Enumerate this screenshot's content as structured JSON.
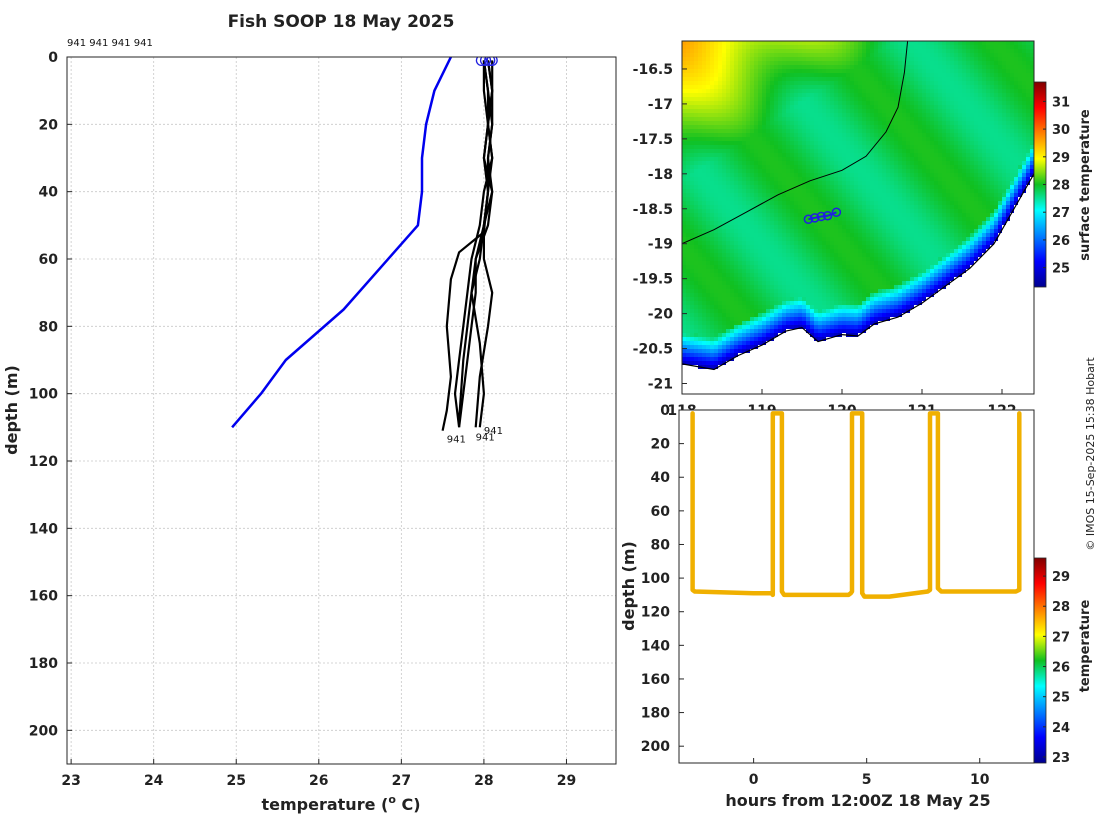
{
  "title": "Fish SOOP 18 May 2025",
  "credit": "© IMOS 15-Sep-2025 15:38 Hobart",
  "colors": {
    "climatology": "#0000ee",
    "profile": "#000000",
    "marker": "#2020e0",
    "track": "#f0b000",
    "coast": "#000000"
  },
  "chart_data": [
    {
      "id": "profile",
      "type": "line",
      "title": "Fish SOOP 18 May 2025",
      "xlabel": "temperature (o C)",
      "xlabel_base": "temperature (",
      "xlabel_sup": "o",
      "xlabel_tail": " C)",
      "ylabel": "depth (m)",
      "xlim": [
        22.95,
        29.6
      ],
      "ylim": [
        0,
        210
      ],
      "y_reversed": true,
      "xticks": [
        23,
        24,
        25,
        26,
        27,
        28,
        29
      ],
      "yticks": [
        0,
        20,
        40,
        60,
        80,
        100,
        120,
        140,
        160,
        180,
        200
      ],
      "grid": true,
      "top_annotation": "941 941 941 941",
      "profile_labels": [
        {
          "text": "941",
          "x": 27.55,
          "y": 111.5
        },
        {
          "text": "941",
          "x": 27.9,
          "y": 111
        },
        {
          "text": "941",
          "x": 28.0,
          "y": 109
        }
      ],
      "series": [
        {
          "name": "climatology",
          "color": "#0000ee",
          "temperature": [
            27.6,
            27.4,
            27.3,
            27.25,
            27.25,
            27.2,
            26.3,
            25.6,
            25.3,
            24.95
          ],
          "depth": [
            0,
            10,
            20,
            30,
            40,
            50,
            75,
            90,
            100,
            110
          ]
        },
        {
          "name": "profile-1",
          "color": "#000000",
          "temperature": [
            28.0,
            28.05,
            28.1,
            28.05,
            28.1,
            28.05,
            27.9,
            27.9,
            27.85,
            27.8,
            27.7
          ],
          "depth": [
            1,
            10,
            20,
            30,
            40,
            50,
            60,
            70,
            80,
            90,
            110
          ]
        },
        {
          "name": "profile-2",
          "color": "#000000",
          "temperature": [
            28.1,
            28.1,
            28.05,
            28.1,
            28.0,
            27.95,
            27.85,
            27.8,
            27.75,
            27.7,
            27.65,
            27.7
          ],
          "depth": [
            1,
            10,
            20,
            30,
            40,
            50,
            60,
            70,
            80,
            90,
            100,
            110
          ]
        },
        {
          "name": "profile-3",
          "color": "#000000",
          "temperature": [
            28.0,
            28.05,
            28.05,
            28.0,
            28.05,
            28.0,
            27.7,
            27.6,
            27.55,
            27.6,
            27.55,
            27.5
          ],
          "depth": [
            1,
            10,
            20,
            30,
            40,
            52,
            58,
            66,
            80,
            95,
            105,
            111
          ]
        },
        {
          "name": "profile-4",
          "color": "#000000",
          "temperature": [
            28.05,
            28.1,
            28.05,
            28.0,
            28.1,
            28.0,
            28.0,
            28.1,
            28.05,
            27.95,
            27.9
          ],
          "depth": [
            1,
            10,
            20,
            30,
            40,
            50,
            60,
            70,
            80,
            95,
            110
          ]
        },
        {
          "name": "profile-5",
          "color": "#000000",
          "temperature": [
            28.0,
            28.0,
            28.05,
            28.1,
            28.05,
            28.0,
            27.9,
            27.85,
            27.95,
            28.0,
            27.95
          ],
          "depth": [
            1,
            10,
            20,
            30,
            40,
            50,
            60,
            70,
            85,
            100,
            110
          ]
        },
        {
          "name": "profile-6",
          "color": "#000000",
          "temperature": [
            28.05,
            28.1,
            28.1,
            28.05,
            28.05,
            28.0,
            27.95,
            27.85,
            27.8,
            27.75,
            27.7
          ],
          "depth": [
            1,
            10,
            20,
            30,
            40,
            50,
            60,
            70,
            80,
            90,
            108
          ]
        }
      ],
      "surface_markers": {
        "temperature": [
          27.97,
          28.02,
          28.07,
          28.1
        ],
        "depth": [
          1,
          1,
          1,
          1
        ]
      }
    },
    {
      "id": "sst-map",
      "type": "heatmap",
      "colorbar_label": "surface temperature",
      "colorbar_ticks": [
        25,
        26,
        27,
        28,
        29,
        30,
        31
      ],
      "color_range": [
        24.3,
        31.7
      ],
      "xlim": [
        118.0,
        122.4
      ],
      "ylim": [
        -21.15,
        -16.1
      ],
      "xticks": [
        118,
        119,
        120,
        121,
        122
      ],
      "xtick_labels": [
        "118",
        "119",
        "120",
        "121",
        "122"
      ],
      "yticks": [
        -16.5,
        -17,
        -17.5,
        -18,
        -18.5,
        -19,
        -19.5,
        -20,
        -20.5,
        -21
      ],
      "ytick_labels": [
        "-16.5",
        "-17",
        "-17.5",
        "-18",
        "-18.5",
        "-19",
        "-19.5",
        "-20",
        "-20.5",
        "-21"
      ],
      "coastline": {
        "lon": [
          118.0,
          118.4,
          118.7,
          119.0,
          119.3,
          119.5,
          119.7,
          120.0,
          120.2,
          120.4,
          120.7,
          121.0,
          121.3,
          121.6,
          121.9,
          122.1,
          122.3,
          122.4
        ],
        "lat": [
          -20.72,
          -20.8,
          -20.6,
          -20.45,
          -20.25,
          -20.2,
          -20.4,
          -20.3,
          -20.32,
          -20.15,
          -20.05,
          -19.85,
          -19.6,
          -19.35,
          -19.0,
          -18.6,
          -18.2,
          -18.0
        ]
      },
      "isobath": {
        "lon": [
          118.0,
          118.4,
          118.8,
          119.2,
          119.6,
          120.0,
          120.3,
          120.55,
          120.7,
          120.78,
          120.82
        ],
        "lat": [
          -19.0,
          -18.8,
          -18.55,
          -18.3,
          -18.1,
          -17.95,
          -17.75,
          -17.4,
          -17.05,
          -16.55,
          -16.1
        ]
      },
      "track": {
        "lon": [
          119.58,
          119.66,
          119.74,
          119.82,
          119.93
        ],
        "lat": [
          -18.65,
          -18.63,
          -18.61,
          -18.6,
          -18.55
        ]
      }
    },
    {
      "id": "depth-time",
      "type": "scatter",
      "xlabel": "hours from 12:00Z 18 May 25",
      "ylabel": "depth (m)",
      "colorbar_label": "temperature",
      "colorbar_ticks": [
        23,
        24,
        25,
        26,
        27,
        28,
        29
      ],
      "color_range": [
        22.8,
        29.6
      ],
      "xlim": [
        -3.3,
        12.4
      ],
      "ylim": [
        0,
        210
      ],
      "y_reversed": true,
      "xticks": [
        0,
        5,
        10
      ],
      "yticks": [
        0,
        20,
        40,
        60,
        80,
        100,
        120,
        140,
        160,
        180,
        200
      ],
      "track_color": "#f0b000",
      "track": {
        "hours": [
          -2.7,
          -2.7,
          -2.6,
          0.0,
          0.8,
          0.85,
          0.85,
          1.25,
          1.25,
          1.35,
          4.2,
          4.3,
          4.35,
          4.35,
          4.8,
          4.8,
          4.9,
          6.0,
          7.7,
          7.8,
          7.8,
          8.15,
          8.15,
          8.3,
          11.6,
          11.75,
          11.75
        ],
        "depth": [
          2,
          107,
          108,
          109,
          109,
          110,
          2,
          2,
          108,
          110,
          110,
          109,
          108,
          2,
          2,
          109,
          111,
          111,
          108,
          107,
          2,
          2,
          106,
          108,
          108,
          107,
          2
        ]
      }
    }
  ]
}
